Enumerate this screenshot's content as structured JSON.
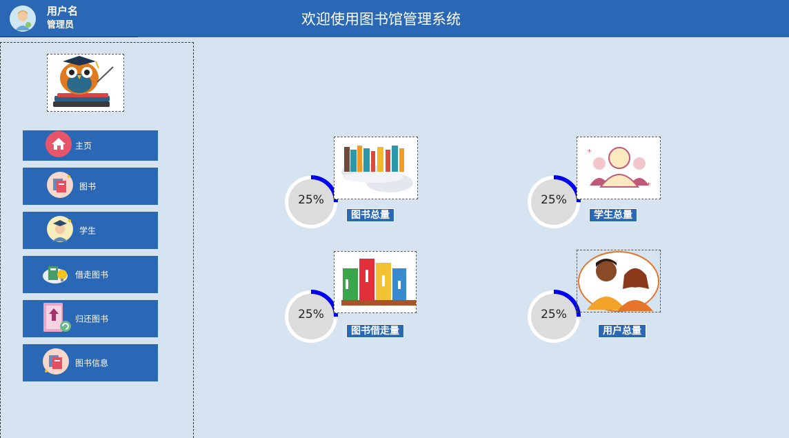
{
  "header": {
    "username": "用户名",
    "role": "管理员",
    "title": "欢迎使用图书馆管理系统"
  },
  "sidebar": {
    "items": [
      {
        "label": "主页",
        "icon": "home-icon"
      },
      {
        "label": "图书",
        "icon": "book-icon"
      },
      {
        "label": "学生",
        "icon": "student-icon"
      },
      {
        "label": "借走图书",
        "icon": "borrow-book-icon"
      },
      {
        "label": "归还图书",
        "icon": "return-book-icon"
      },
      {
        "label": "图书信息",
        "icon": "book-info-icon"
      }
    ]
  },
  "stats": [
    {
      "label": "图书总量",
      "percent_text": "25%",
      "progress": 0.25,
      "icon": "books-cloud-icon"
    },
    {
      "label": "学生总量",
      "percent_text": "25%",
      "progress": 0.25,
      "icon": "students-icon"
    },
    {
      "label": "图书借走量",
      "percent_text": "25%",
      "progress": 0.25,
      "icon": "bookshelf-icon"
    },
    {
      "label": "用户总量",
      "percent_text": "25%",
      "progress": 0.25,
      "icon": "users-icon"
    }
  ],
  "colors": {
    "header_bg": "#2a67b4",
    "page_bg": "#d6e4f2",
    "ring_progress": "#0000ee",
    "ring_track": "#ffffff"
  }
}
